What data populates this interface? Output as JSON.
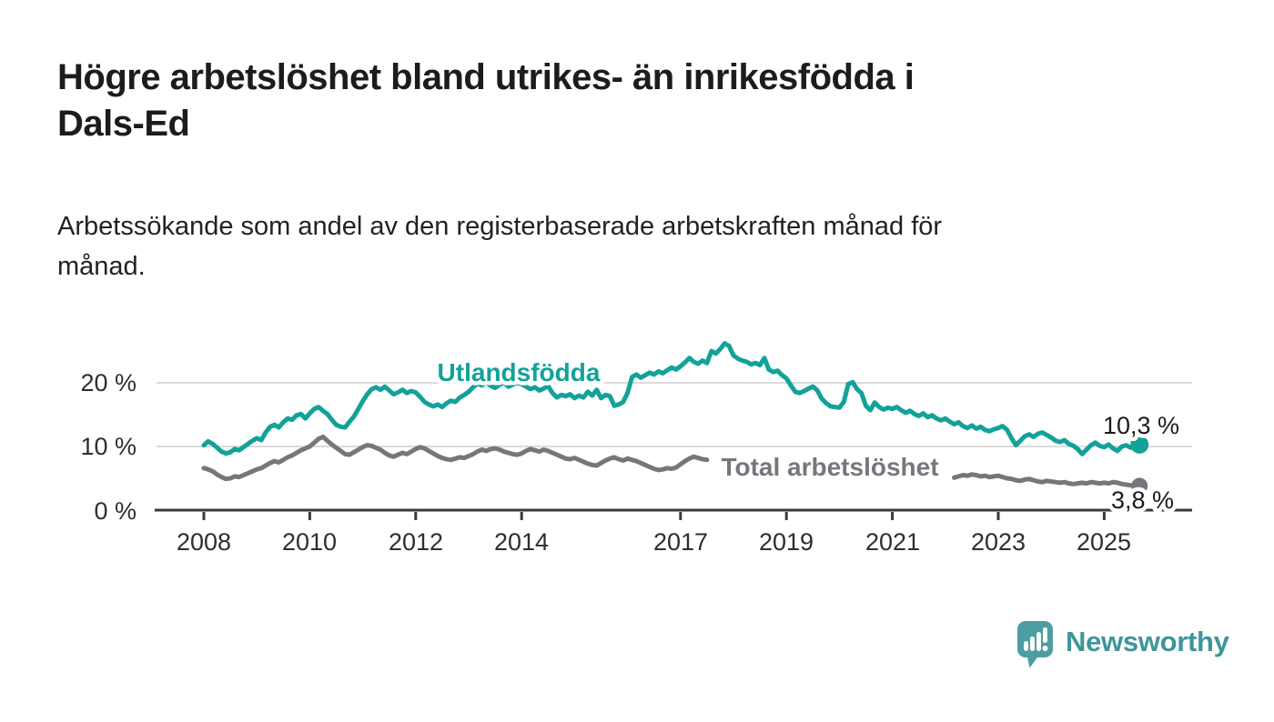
{
  "title_line1": "Högre arbetslöshet bland utrikes- än inrikesfödda i",
  "title_line2": "Dals-Ed",
  "subtitle_line1": "Arbetssökande som andel av den registerbaserade arbetskraften månad för",
  "subtitle_line2": "månad.",
  "chart_data": {
    "type": "line",
    "title": "Högre arbetslöshet bland utrikes- än inrikesfödda i Dals-Ed",
    "subtitle": "Arbetssökande som andel av den registerbaserade arbetskraften månad för månad.",
    "x_start": "2008-01",
    "x_end": "2025-09",
    "x_frequency": "monthly",
    "xlabel": "",
    "ylabel": "",
    "ylim": [
      0,
      27
    ],
    "grid": "horizontal",
    "legend_position": "inline-labels",
    "y_ticks": [
      {
        "value": 0,
        "label": "0 %"
      },
      {
        "value": 10,
        "label": "10 %"
      },
      {
        "value": 20,
        "label": "20 %"
      }
    ],
    "x_ticks": [
      {
        "year": 2008,
        "label": "2008"
      },
      {
        "year": 2010,
        "label": "2010"
      },
      {
        "year": 2012,
        "label": "2012"
      },
      {
        "year": 2014,
        "label": "2014"
      },
      {
        "year": 2017,
        "label": "2017"
      },
      {
        "year": 2019,
        "label": "2019"
      },
      {
        "year": 2021,
        "label": "2021"
      },
      {
        "year": 2023,
        "label": "2023"
      },
      {
        "year": 2025,
        "label": "2025"
      }
    ],
    "series": [
      {
        "name": "Utlandsfödda",
        "label_text": "Utlandsfödda",
        "end_label": "10,3 %",
        "end_value": 10.3,
        "color": "#12a29a",
        "values": [
          10.2,
          10.8,
          10.4,
          9.8,
          9.2,
          8.9,
          9.1,
          9.6,
          9.4,
          9.9,
          10.4,
          10.9,
          11.3,
          11.0,
          12.2,
          13.1,
          13.4,
          13.0,
          13.8,
          14.4,
          14.2,
          14.9,
          15.1,
          14.4,
          15.2,
          15.9,
          16.2,
          15.6,
          15.1,
          14.2,
          13.4,
          13.1,
          13.0,
          13.9,
          14.7,
          15.9,
          17.1,
          18.2,
          19.0,
          19.3,
          18.9,
          19.4,
          18.8,
          18.2,
          18.5,
          18.9,
          18.4,
          18.7,
          18.5,
          17.8,
          17.0,
          16.6,
          16.3,
          16.6,
          16.2,
          16.8,
          17.2,
          17.0,
          17.7,
          18.1,
          18.6,
          19.3,
          19.9,
          19.6,
          20.1,
          19.5,
          19.2,
          19.7,
          20.0,
          19.4,
          19.7,
          20.0,
          19.8,
          19.4,
          19.0,
          19.3,
          18.8,
          19.1,
          19.5,
          18.4,
          17.7,
          18.1,
          17.9,
          18.2,
          17.6,
          18.0,
          17.7,
          18.6,
          18.0,
          18.9,
          17.6,
          18.1,
          17.9,
          16.4,
          16.6,
          17.0,
          18.4,
          20.9,
          21.3,
          20.8,
          21.2,
          21.6,
          21.3,
          21.8,
          21.5,
          22.0,
          22.4,
          22.1,
          22.6,
          23.2,
          23.9,
          23.3,
          23.0,
          23.5,
          23.1,
          25.0,
          24.6,
          25.3,
          26.2,
          25.8,
          24.3,
          23.8,
          23.5,
          23.3,
          22.9,
          23.1,
          22.8,
          23.9,
          22.1,
          21.7,
          21.9,
          21.2,
          20.7,
          19.6,
          18.6,
          18.4,
          18.7,
          19.1,
          19.4,
          18.8,
          17.5,
          16.8,
          16.3,
          16.2,
          16.1,
          17.0,
          19.8,
          20.1,
          19.0,
          18.4,
          16.4,
          15.7,
          16.9,
          16.2,
          15.8,
          16.1,
          15.9,
          16.2,
          15.7,
          15.3,
          15.6,
          15.1,
          14.8,
          15.2,
          14.6,
          14.9,
          14.4,
          14.1,
          14.4,
          13.9,
          13.5,
          13.8,
          13.2,
          12.9,
          13.3,
          12.8,
          13.1,
          12.6,
          12.4,
          12.7,
          12.9,
          13.2,
          12.6,
          11.3,
          10.2,
          10.9,
          11.6,
          11.9,
          11.5,
          12.0,
          12.2,
          11.8,
          11.4,
          10.9,
          10.7,
          11.0,
          10.4,
          10.1,
          9.6,
          8.8,
          9.5,
          10.2,
          10.6,
          10.1,
          9.9,
          10.3,
          9.7,
          9.3,
          10.0,
          10.2,
          9.8,
          10.0,
          10.3
        ]
      },
      {
        "name": "Total arbetslöshet",
        "label_text": "Total arbetslöshet",
        "end_label": "3,8 %",
        "end_value": 3.8,
        "color": "#76767d",
        "values": [
          6.6,
          6.4,
          6.1,
          5.6,
          5.2,
          4.9,
          5.0,
          5.3,
          5.2,
          5.5,
          5.8,
          6.1,
          6.4,
          6.6,
          7.0,
          7.4,
          7.7,
          7.5,
          7.9,
          8.3,
          8.6,
          9.0,
          9.4,
          9.7,
          10.0,
          10.6,
          11.2,
          11.5,
          10.9,
          10.3,
          9.8,
          9.3,
          8.8,
          8.7,
          9.1,
          9.5,
          9.9,
          10.2,
          10.1,
          9.8,
          9.5,
          9.0,
          8.6,
          8.4,
          8.7,
          9.0,
          8.8,
          9.2,
          9.6,
          9.9,
          9.7,
          9.3,
          8.9,
          8.5,
          8.2,
          8.0,
          7.9,
          8.1,
          8.3,
          8.2,
          8.5,
          8.8,
          9.2,
          9.5,
          9.3,
          9.6,
          9.7,
          9.5,
          9.2,
          9.0,
          8.8,
          8.7,
          8.9,
          9.3,
          9.6,
          9.4,
          9.2,
          9.5,
          9.3,
          9.0,
          8.7,
          8.4,
          8.1,
          8.0,
          8.2,
          7.9,
          7.6,
          7.3,
          7.1,
          7.0,
          7.4,
          7.8,
          8.1,
          8.3,
          8.0,
          7.8,
          8.1,
          7.9,
          7.7,
          7.4,
          7.1,
          6.8,
          6.5,
          6.3,
          6.4,
          6.6,
          6.5,
          6.7,
          7.2,
          7.7,
          8.1,
          8.4,
          8.2,
          8.0,
          7.9,
          null,
          null,
          null,
          null,
          null,
          null,
          null,
          null,
          null,
          null,
          null,
          null,
          null,
          null,
          null,
          null,
          null,
          null,
          null,
          null,
          null,
          null,
          null,
          null,
          null,
          null,
          null,
          null,
          null,
          null,
          null,
          null,
          null,
          null,
          null,
          null,
          null,
          null,
          null,
          null,
          null,
          null,
          null,
          null,
          null,
          null,
          null,
          null,
          null,
          null,
          null,
          null,
          null,
          null,
          null,
          5.1,
          5.3,
          5.5,
          5.4,
          5.6,
          5.5,
          5.3,
          5.4,
          5.2,
          5.3,
          5.4,
          5.2,
          5.0,
          4.9,
          4.7,
          4.6,
          4.8,
          4.9,
          4.7,
          4.5,
          4.4,
          4.6,
          4.5,
          4.4,
          4.3,
          4.4,
          4.2,
          4.1,
          4.2,
          4.3,
          4.2,
          4.4,
          4.3,
          4.2,
          4.3,
          4.2,
          4.4,
          4.3,
          4.1,
          4.0,
          3.9,
          3.9,
          3.8
        ]
      }
    ]
  },
  "logo": {
    "text": "Newsworthy",
    "icon": "newsworthy-speech-bubble-chart-icon",
    "color": "#3f959a",
    "icon_color": "#4c9ea2"
  }
}
